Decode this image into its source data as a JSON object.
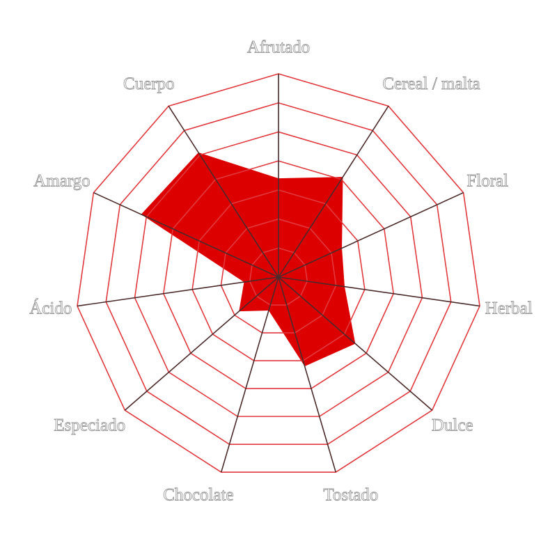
{
  "chart_data": {
    "type": "radar",
    "categories": [
      "Afrutado",
      "Cereal / malta",
      "Floral",
      "Herbal",
      "Dulce",
      "Tostado",
      "Chocolate",
      "Especiado",
      "Ácido",
      "Amargo",
      "Cuerpo"
    ],
    "values": [
      3.4,
      4.1,
      2.4,
      2.3,
      3.5,
      3.2,
      1.2,
      1.8,
      1.2,
      5.2,
      5.1
    ],
    "color": "#dd0000",
    "grid_color": "#e0393e",
    "spoke_color": "#4a2a2a",
    "ylim": [
      0,
      7
    ],
    "yticks": [
      1,
      2,
      3,
      4,
      5,
      6,
      7
    ]
  }
}
